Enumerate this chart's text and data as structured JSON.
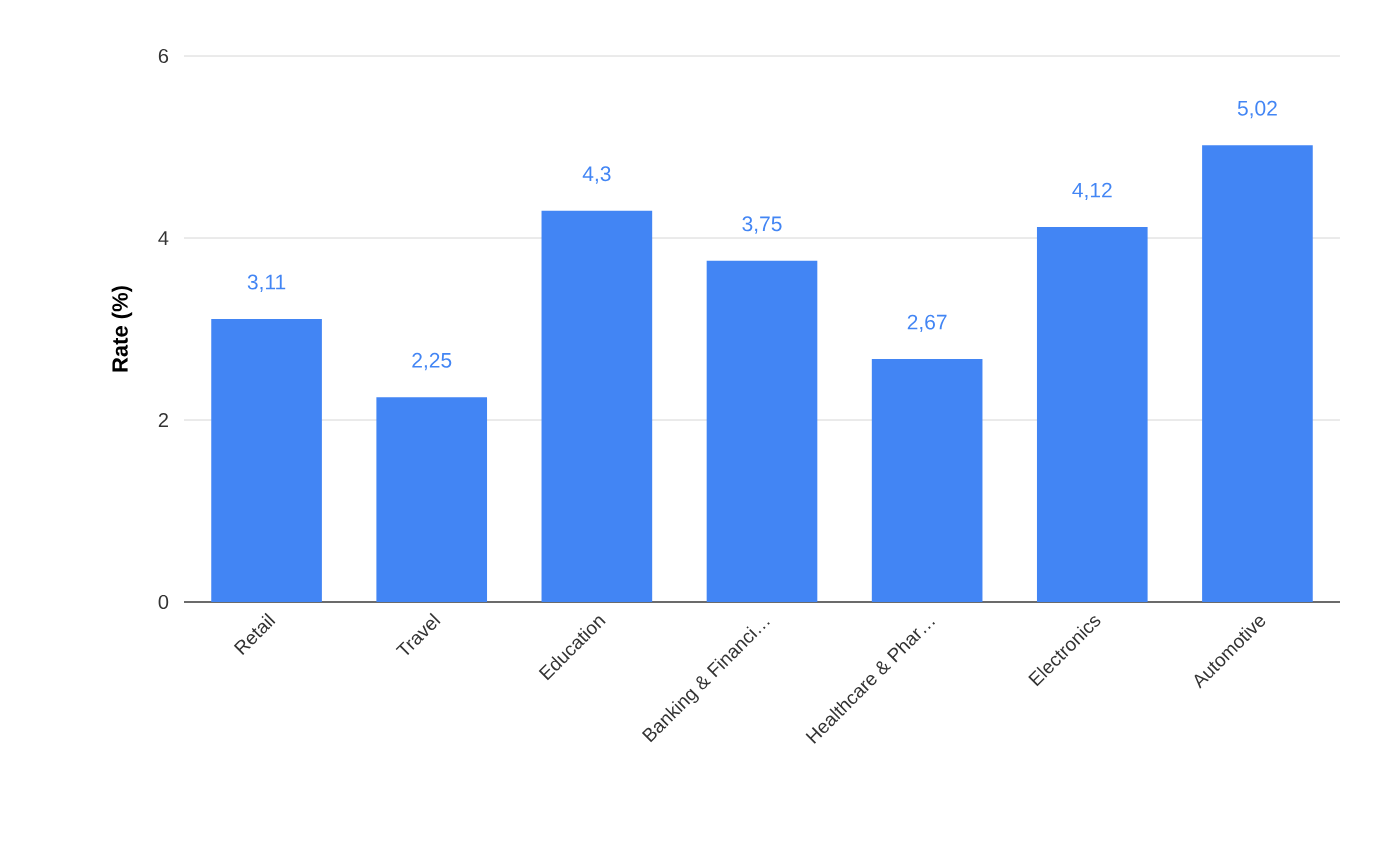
{
  "chart_data": {
    "type": "bar",
    "ylabel": "Rate (%)",
    "categories": [
      "Retail",
      "Travel",
      "Education",
      "Banking & Financi…",
      "Healthcare & Phar…",
      "Electronics",
      "Automotive"
    ],
    "values": [
      3.11,
      2.25,
      4.3,
      3.75,
      2.67,
      4.12,
      5.02
    ],
    "value_labels": [
      "3,11",
      "2,25",
      "4,3",
      "3,75",
      "2,67",
      "4,12",
      "5,02"
    ],
    "color": "#4285f4",
    "ylim": [
      0,
      6
    ],
    "yticks": [
      0,
      2,
      4,
      6
    ],
    "grid": "y"
  }
}
